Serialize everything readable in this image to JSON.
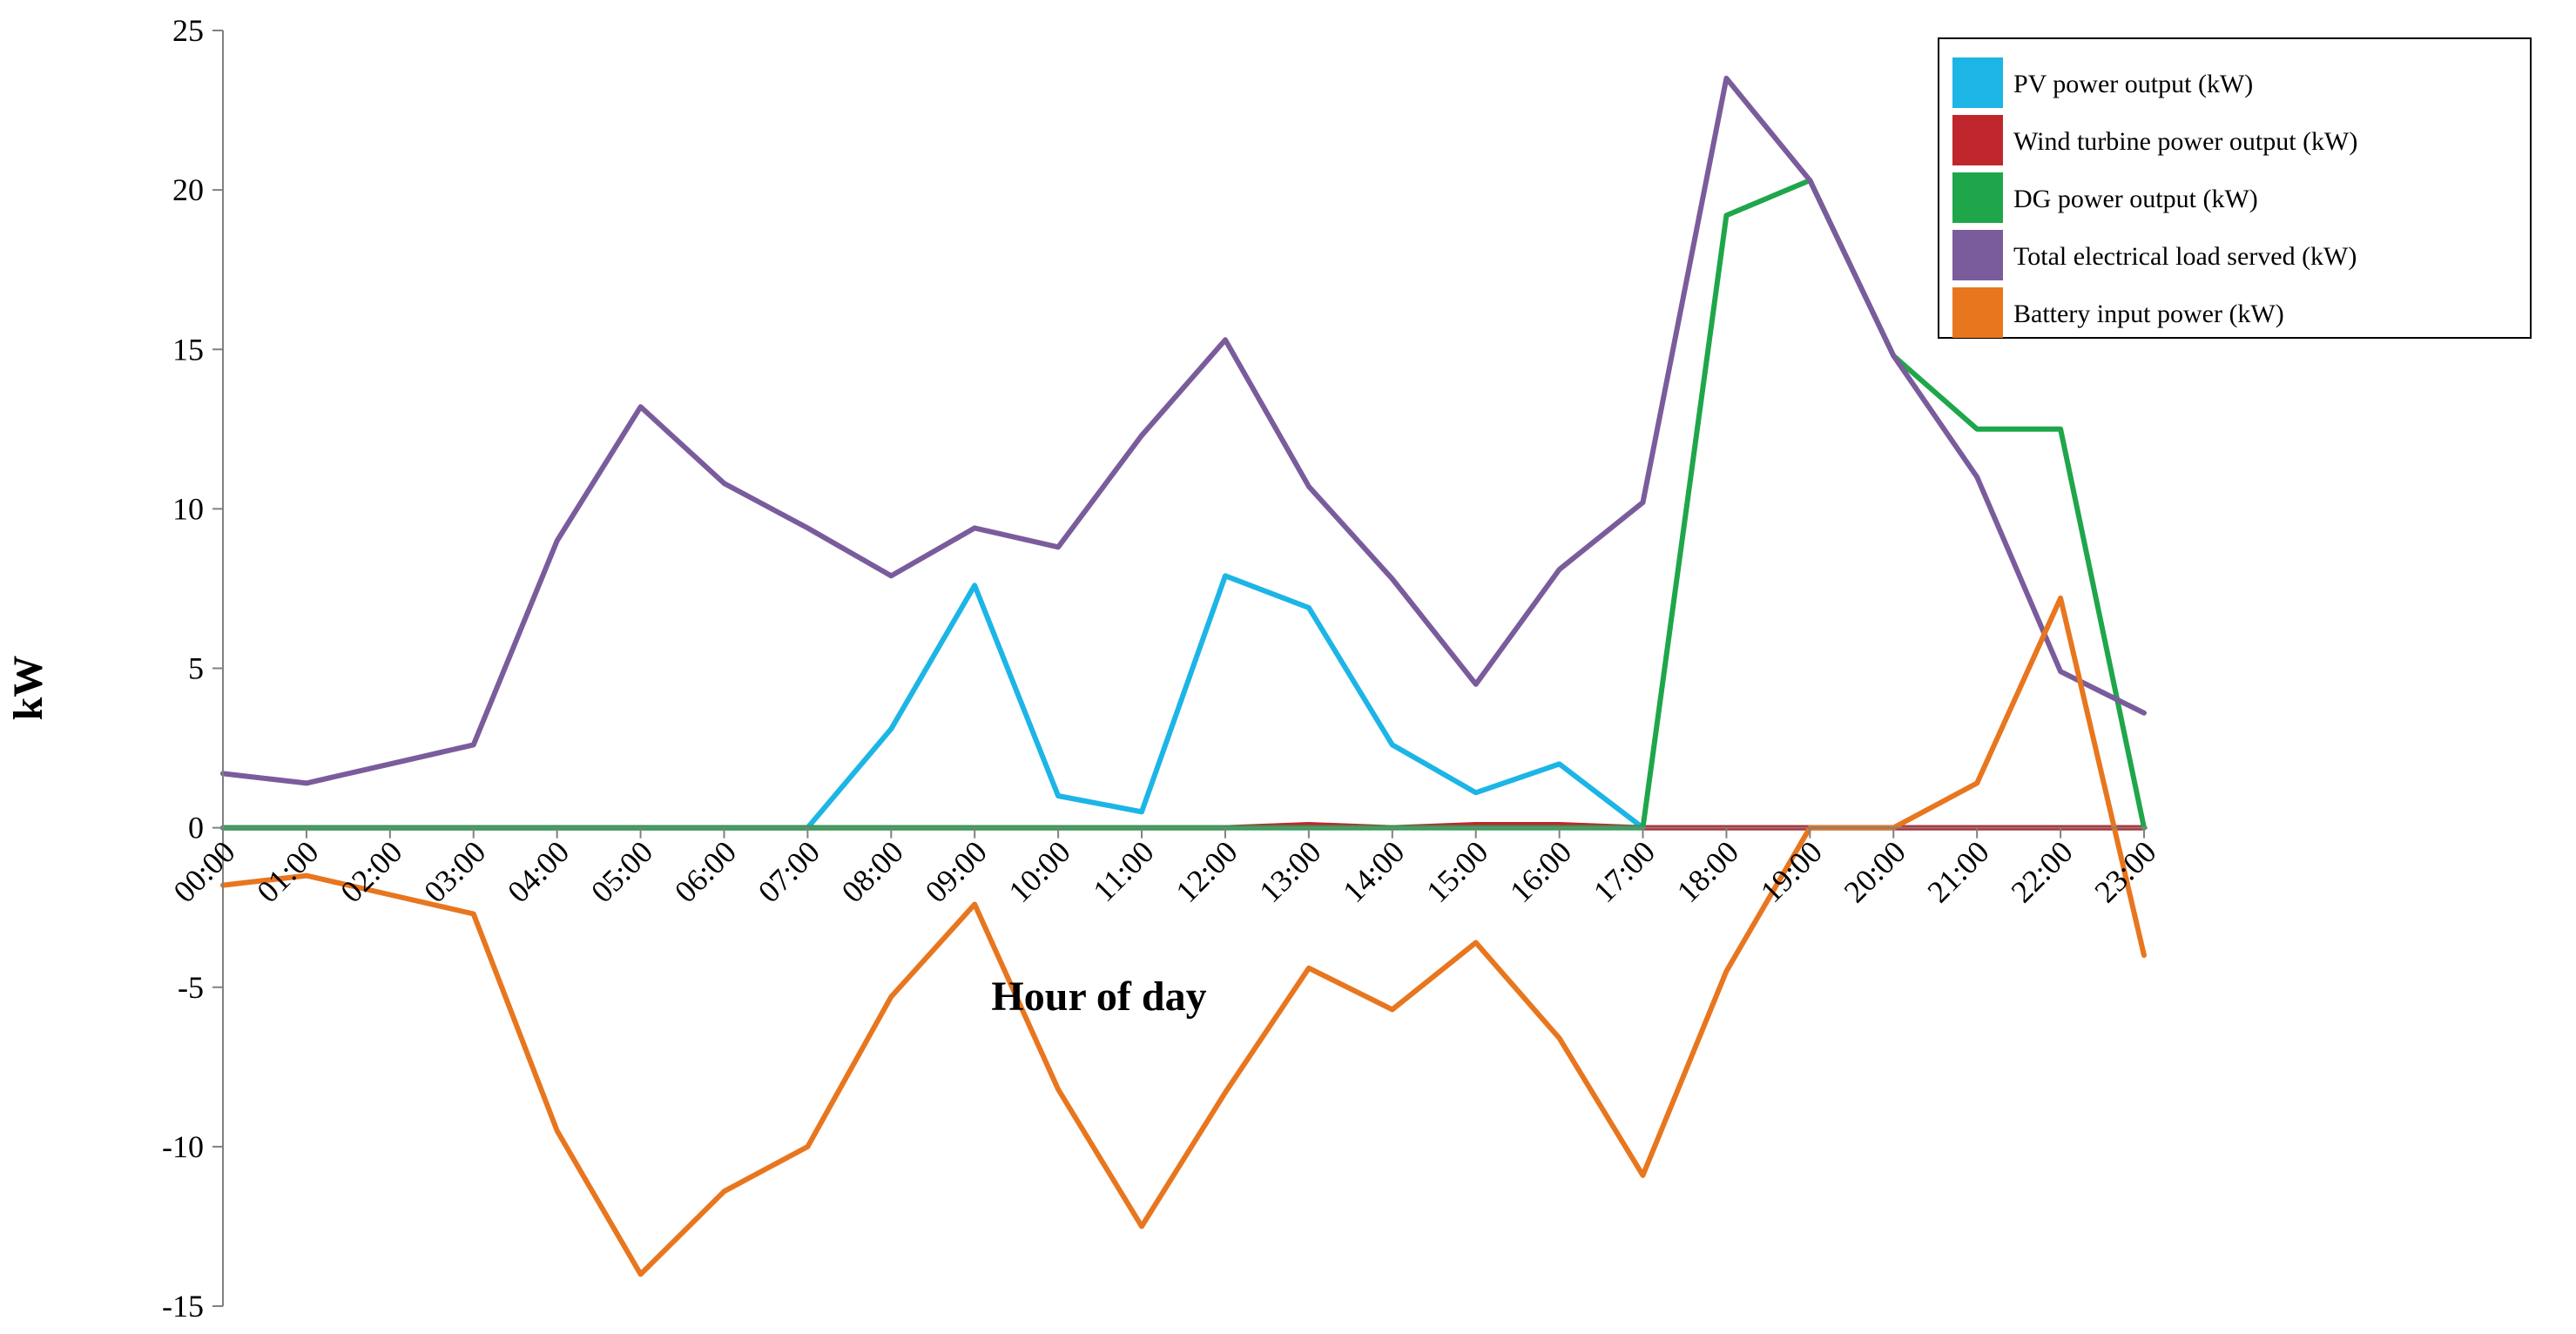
{
  "chart_data": {
    "type": "line",
    "title": "",
    "xlabel": "Hour of day",
    "ylabel": "kW",
    "ylim": [
      -15,
      25
    ],
    "yticks": [
      25,
      20,
      15,
      10,
      5,
      0,
      -5,
      -10,
      -15
    ],
    "grid": false,
    "legend_position": "top-right",
    "categories": [
      "00:00",
      "01:00",
      "02:00",
      "03:00",
      "04:00",
      "05:00",
      "06:00",
      "07:00",
      "08:00",
      "09:00",
      "10:00",
      "11:00",
      "12:00",
      "13:00",
      "14:00",
      "15:00",
      "16:00",
      "17:00",
      "18:00",
      "19:00",
      "20:00",
      "21:00",
      "22:00",
      "23:00"
    ],
    "series": [
      {
        "name": "PV power output (kW)",
        "color": "#1cb5e6",
        "values": [
          0,
          0,
          0,
          0,
          0,
          0,
          0,
          0,
          3.1,
          7.6,
          1.0,
          0.5,
          7.9,
          6.9,
          2.6,
          1.1,
          2.0,
          0,
          0,
          0,
          0,
          0,
          0,
          0
        ]
      },
      {
        "name": "Wind turbine power output (kW)",
        "color": "#c0272d",
        "values": [
          0,
          0,
          0,
          0,
          0,
          0,
          0,
          0,
          0,
          0,
          0,
          0,
          0,
          0.1,
          0,
          0.1,
          0.1,
          0,
          0,
          0,
          0,
          0,
          0,
          0
        ]
      },
      {
        "name": "DG power output (kW)",
        "color": "#1fa64b",
        "values": [
          0,
          0,
          0,
          0,
          0,
          0,
          0,
          0,
          0,
          0,
          0,
          0,
          0,
          0,
          0,
          0,
          0,
          0,
          19.2,
          20.3,
          14.8,
          12.5,
          12.5,
          0
        ]
      },
      {
        "name": "Total electrical load served (kW)",
        "color": "#7a5c9c",
        "values": [
          1.7,
          1.4,
          2.0,
          2.6,
          9.0,
          13.2,
          10.8,
          9.4,
          7.9,
          9.4,
          8.8,
          12.3,
          15.3,
          10.7,
          7.8,
          4.5,
          8.1,
          10.2,
          23.5,
          20.3,
          14.8,
          11.0,
          4.9,
          3.6
        ]
      },
      {
        "name": "Battery input power (kW)",
        "color": "#e8761e",
        "values": [
          -1.8,
          -1.5,
          -2.1,
          -2.7,
          -9.5,
          -14.0,
          -11.4,
          -10.0,
          -5.3,
          -2.4,
          -8.2,
          -12.5,
          -8.3,
          -4.4,
          -5.7,
          -3.6,
          -6.6,
          -10.9,
          -4.5,
          0,
          0,
          1.4,
          7.2,
          -4.0
        ]
      }
    ]
  }
}
